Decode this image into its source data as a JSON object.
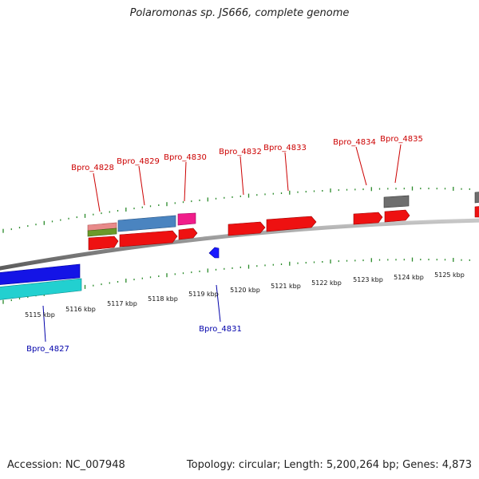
{
  "title": "Polaromonas sp. JS666, complete genome",
  "footer": {
    "accession": "Accession: NC_007948",
    "summary": "Topology: circular; Length: 5,200,264 bp; Genes: 4,873"
  },
  "colors": {
    "backbone": "#909090",
    "tick": "#2a8a2a",
    "forward_label": "#cc0000",
    "reverse_label": "#0000aa"
  },
  "scale_labels": [
    "5115 kbp",
    "5116 kbp",
    "5117 kbp",
    "5118 kbp",
    "5119 kbp",
    "5120 kbp",
    "5121 kbp",
    "5122 kbp",
    "5123 kbp",
    "5124 kbp",
    "5125 kbp"
  ],
  "genes": [
    {
      "label": "Bpro_4827",
      "strand": "reverse"
    },
    {
      "label": "Bpro_4828",
      "strand": "forward"
    },
    {
      "label": "Bpro_4829",
      "strand": "forward"
    },
    {
      "label": "Bpro_4830",
      "strand": "forward"
    },
    {
      "label": "Bpro_4831",
      "strand": "reverse"
    },
    {
      "label": "Bpro_4832",
      "strand": "forward"
    },
    {
      "label": "Bpro_4833",
      "strand": "forward"
    },
    {
      "label": "Bpro_4834",
      "strand": "forward"
    },
    {
      "label": "Bpro_4835",
      "strand": "forward"
    }
  ]
}
